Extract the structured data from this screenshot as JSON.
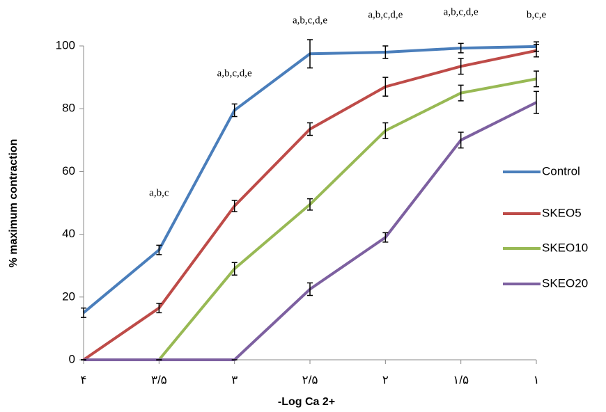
{
  "chart_data": {
    "type": "line",
    "x_label": "-Log Ca 2+",
    "y_label": "% maximum contraction",
    "categories": [
      "۴",
      "۳/۵",
      "۳",
      "۲/۵",
      "۲",
      "۱/۵",
      "۱"
    ],
    "series": [
      {
        "name": "Control",
        "color": "#4a7ebb",
        "values": [
          15,
          35,
          79.5,
          97.5,
          98,
          99.3,
          99.8
        ],
        "errors": [
          1.5,
          1.5,
          2,
          4.5,
          2,
          1.5,
          1.5
        ]
      },
      {
        "name": "SKEO5",
        "color": "#be4b48",
        "values": [
          0,
          16.5,
          49,
          73.5,
          87,
          93.5,
          98.5
        ],
        "errors": [
          0,
          1.5,
          1.8,
          2,
          3,
          2.5,
          2
        ]
      },
      {
        "name": "SKEO10",
        "color": "#98b954",
        "values": [
          0,
          0,
          29,
          49.5,
          73,
          85,
          89.5
        ],
        "errors": [
          0,
          0,
          2,
          1.8,
          2.5,
          2.5,
          2.5
        ]
      },
      {
        "name": "SKEO20",
        "color": "#7d60a0",
        "values": [
          0,
          0,
          0,
          22.5,
          39,
          70,
          82
        ],
        "errors": [
          0,
          0,
          0,
          2,
          1.5,
          2.5,
          3.5
        ]
      }
    ],
    "annotations": [
      null,
      "a,b,c",
      "a,b,c,d,e",
      "a,b,c,d,e",
      "a,b,c,d,e",
      "a,b,c,d,e",
      "b,c,e"
    ],
    "ylim": [
      0,
      100
    ],
    "yticks": [
      0,
      20,
      40,
      60,
      80,
      100
    ],
    "grid": false,
    "legend": "right"
  }
}
